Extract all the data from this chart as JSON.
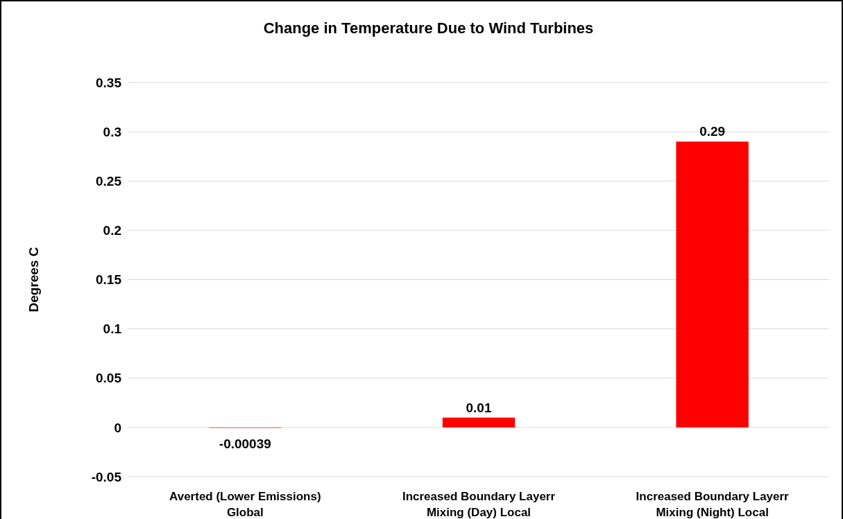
{
  "chart_data": {
    "type": "bar",
    "title": "Change in Temperature Due to Wind Turbines",
    "ylabel": "Degrees C",
    "categories": [
      "Averted (Lower Emissions) Global",
      "Increased Boundary Layerr Mixing (Day) Local",
      "Increased Boundary Layerr Mixing (Night) Local"
    ],
    "values": [
      -0.00039,
      0.01,
      0.29
    ],
    "color": "#ff0000",
    "ylim": [
      -0.05,
      0.35
    ],
    "yticks": [
      -0.05,
      0,
      0.05,
      0.1,
      0.15,
      0.2,
      0.25,
      0.3,
      0.35
    ],
    "grid": "y",
    "data_labels": true
  }
}
